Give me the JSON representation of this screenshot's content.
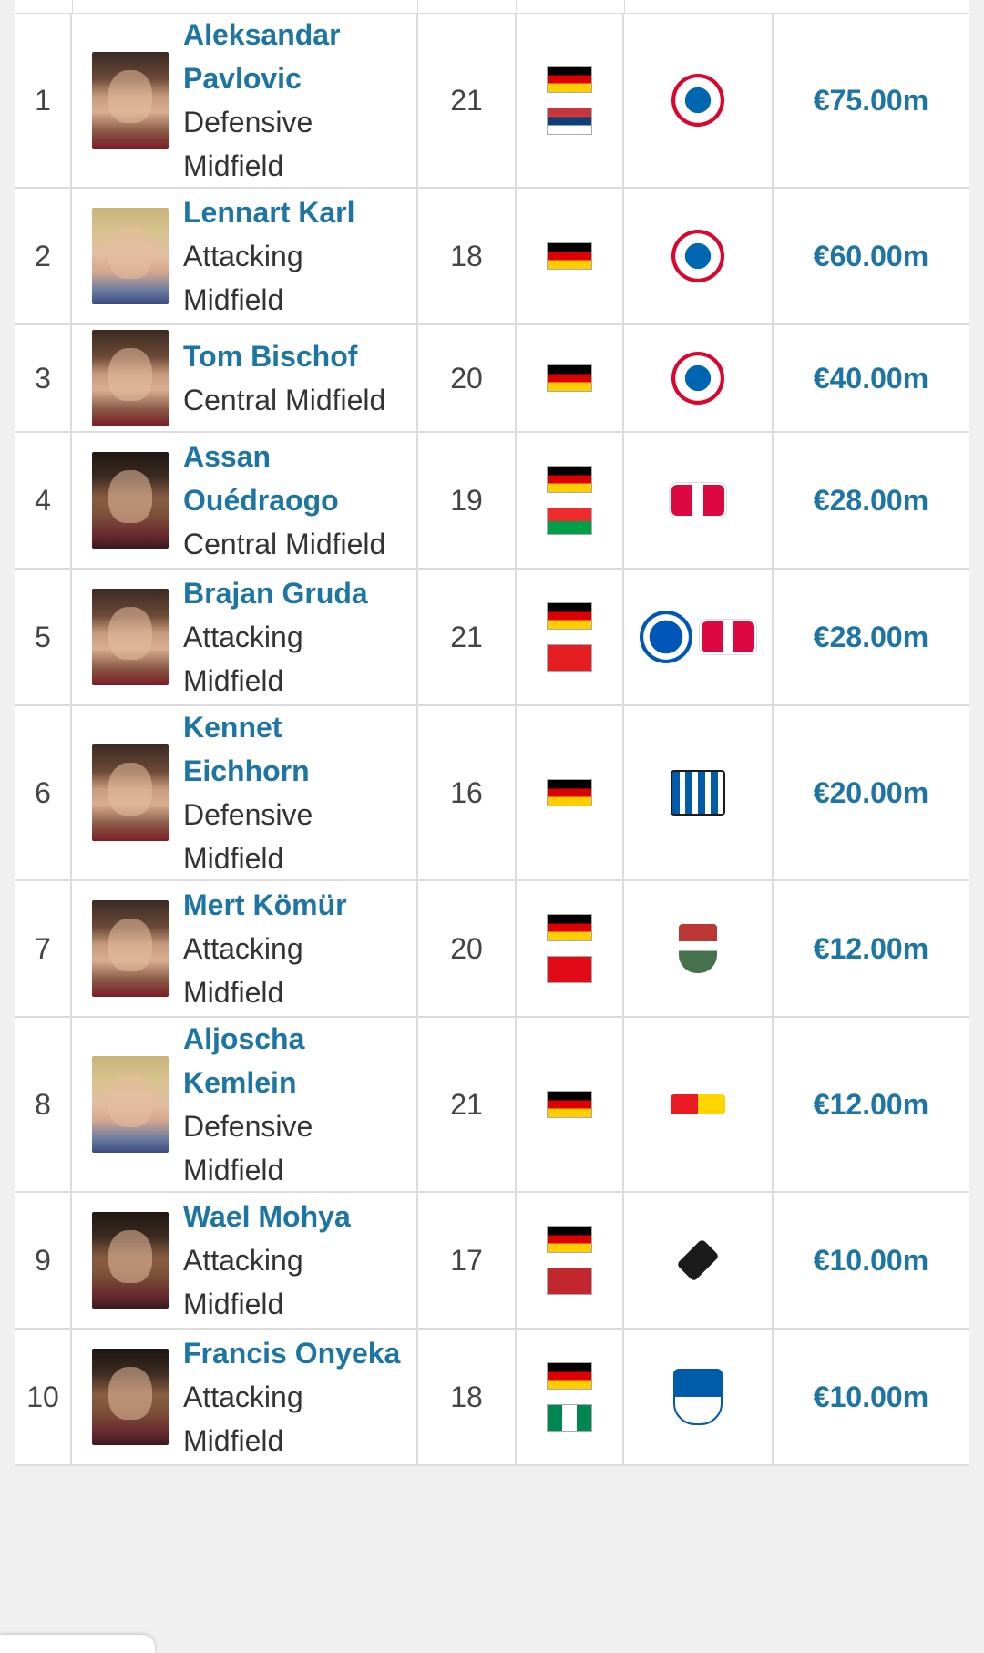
{
  "rows": [
    {
      "rank": "1",
      "name_lines": [
        "Aleksandar",
        "Pavlovic"
      ],
      "position_lines": [
        "Defensive",
        "Midfield"
      ],
      "age": "21",
      "flags": [
        "germany",
        "serbia"
      ],
      "clubs": [
        "bayern-munich"
      ],
      "value": "€75.00m"
    },
    {
      "rank": "2",
      "name_lines": [
        "Lennart Karl"
      ],
      "position_lines": [
        "Attacking",
        "Midfield"
      ],
      "age": "18",
      "flags": [
        "germany"
      ],
      "clubs": [
        "bayern-munich"
      ],
      "value": "€60.00m"
    },
    {
      "rank": "3",
      "name_lines": [
        "Tom Bischof"
      ],
      "position_lines": [
        "Central Midfield"
      ],
      "age": "20",
      "flags": [
        "germany"
      ],
      "clubs": [
        "bayern-munich"
      ],
      "value": "€40.00m"
    },
    {
      "rank": "4",
      "name_lines": [
        "Assan",
        "Ouédraogo"
      ],
      "position_lines": [
        "Central Midfield"
      ],
      "age": "19",
      "flags": [
        "germany",
        "burkina-faso"
      ],
      "clubs": [
        "rb-leipzig"
      ],
      "value": "€28.00m"
    },
    {
      "rank": "5",
      "name_lines": [
        "Brajan Gruda"
      ],
      "position_lines": [
        "Attacking",
        "Midfield"
      ],
      "age": "21",
      "flags": [
        "germany",
        "albania"
      ],
      "clubs": [
        "brighton",
        "rb-leipzig"
      ],
      "value": "€28.00m"
    },
    {
      "rank": "6",
      "name_lines": [
        "Kennet",
        "Eichhorn"
      ],
      "position_lines": [
        "Defensive",
        "Midfield"
      ],
      "age": "16",
      "flags": [
        "germany"
      ],
      "clubs": [
        "hertha-bsc"
      ],
      "value": "€20.00m"
    },
    {
      "rank": "7",
      "name_lines": [
        "Mert Kömür"
      ],
      "position_lines": [
        "Attacking",
        "Midfield"
      ],
      "age": "20",
      "flags": [
        "germany",
        "turkey"
      ],
      "clubs": [
        "fc-augsburg"
      ],
      "value": "€12.00m"
    },
    {
      "rank": "8",
      "name_lines": [
        "Aljoscha",
        "Kemlein"
      ],
      "position_lines": [
        "Defensive",
        "Midfield"
      ],
      "age": "21",
      "flags": [
        "germany"
      ],
      "clubs": [
        "union-berlin"
      ],
      "value": "€12.00m"
    },
    {
      "rank": "9",
      "name_lines": [
        "Wael Mohya"
      ],
      "position_lines": [
        "Attacking",
        "Midfield"
      ],
      "age": "17",
      "flags": [
        "germany",
        "morocco"
      ],
      "clubs": [
        "borussia-monchengladbach"
      ],
      "value": "€10.00m"
    },
    {
      "rank": "10",
      "name_lines": [
        "Francis Onyeka"
      ],
      "position_lines": [
        "Attacking",
        "Midfield"
      ],
      "age": "18",
      "flags": [
        "germany",
        "nigeria"
      ],
      "clubs": [
        "vfl-bochum"
      ],
      "value": "€10.00m"
    }
  ]
}
